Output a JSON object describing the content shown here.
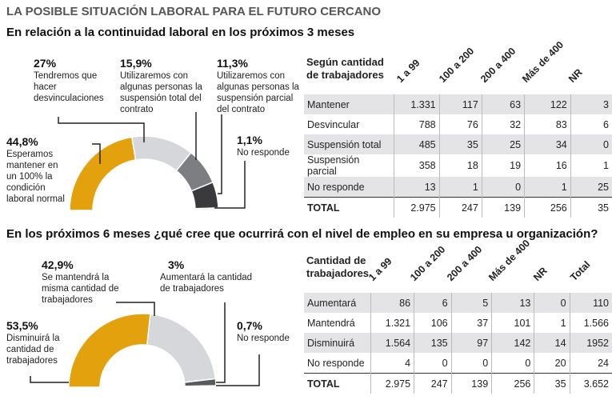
{
  "title": "LA POSIBLE SITUACIÓN LABORAL PARA EL FUTURO CERCANO",
  "chart_data": [
    {
      "type": "pie",
      "subtitle": "En relación a la continuidad laboral en los próximos 3 meses",
      "slices": [
        {
          "pct": "44,8%",
          "value": 44.8,
          "label": "Esperamos mantener en un 100% la condición laboral normal",
          "color": "#e3a10e"
        },
        {
          "pct": "27%",
          "value": 27,
          "label": "Tendremos que hacer desvinculaciones",
          "color": "#d6d7db"
        },
        {
          "pct": "15,9%",
          "value": 15.9,
          "label": "Utilizaremos con algunas personas la suspensión total del contrato",
          "color": "#7d7e82"
        },
        {
          "pct": "11,3%",
          "value": 11.3,
          "label": "Utilizaremos con algunas personas la suspensión parcial del contrato",
          "color": "#3a3a3c"
        },
        {
          "pct": "1,1%",
          "value": 1.1,
          "label": "No responde",
          "color": "#f2f2f2"
        }
      ]
    },
    {
      "type": "pie",
      "subtitle": "En los próximos 6 meses ¿qué cree que ocurrirá con el nivel de empleo en su empresa u organización?",
      "slices": [
        {
          "pct": "53,5%",
          "value": 53.5,
          "label": "Disminuirá la cantidad de trabajadores",
          "color": "#e3a10e"
        },
        {
          "pct": "42,9%",
          "value": 42.9,
          "label": "Se mantendrá la misma cantidad de trabajadores",
          "color": "#d6d7db"
        },
        {
          "pct": "3%",
          "value": 3,
          "label": "Aumentará la cantidad de trabajadores",
          "color": "#5a5a5c"
        },
        {
          "pct": "0,7%",
          "value": 0.7,
          "label": "No responde",
          "color": "#e8e8e8"
        }
      ]
    }
  ],
  "table1": {
    "caption": "Según cantidad de trabajadores",
    "columns": [
      "1 a 99",
      "100 a 200",
      "200 a 400",
      "Más de 400",
      "NR"
    ],
    "rows": [
      [
        "Mantener",
        "1.331",
        "117",
        "63",
        "122",
        "3"
      ],
      [
        "Desvincular",
        "788",
        "76",
        "32",
        "83",
        "6"
      ],
      [
        "Suspensión total",
        "485",
        "35",
        "25",
        "34",
        "0"
      ],
      [
        "Suspensión parcial",
        "358",
        "18",
        "19",
        "16",
        "1"
      ],
      [
        "No responde",
        "13",
        "1",
        "0",
        "1",
        "25"
      ],
      [
        "TOTAL",
        "2.975",
        "247",
        "139",
        "256",
        "35"
      ]
    ]
  },
  "table2": {
    "caption": "Cantidad de trabajadores",
    "columns": [
      "1 a 99",
      "100 a 200",
      "200 a 400",
      "Más de 400",
      "NR",
      "Total"
    ],
    "rows": [
      [
        "Aumentará",
        "86",
        "6",
        "5",
        "13",
        "0",
        "110"
      ],
      [
        "Mantendrá",
        "1.321",
        "106",
        "37",
        "101",
        "1",
        "1.566"
      ],
      [
        "Disminuirá",
        "1.564",
        "135",
        "97",
        "142",
        "14",
        "1952"
      ],
      [
        "No responde",
        "4",
        "0",
        "0",
        "0",
        "20",
        "24"
      ],
      [
        "TOTAL",
        "2.975",
        "247",
        "139",
        "256",
        "35",
        "3.652"
      ]
    ]
  }
}
